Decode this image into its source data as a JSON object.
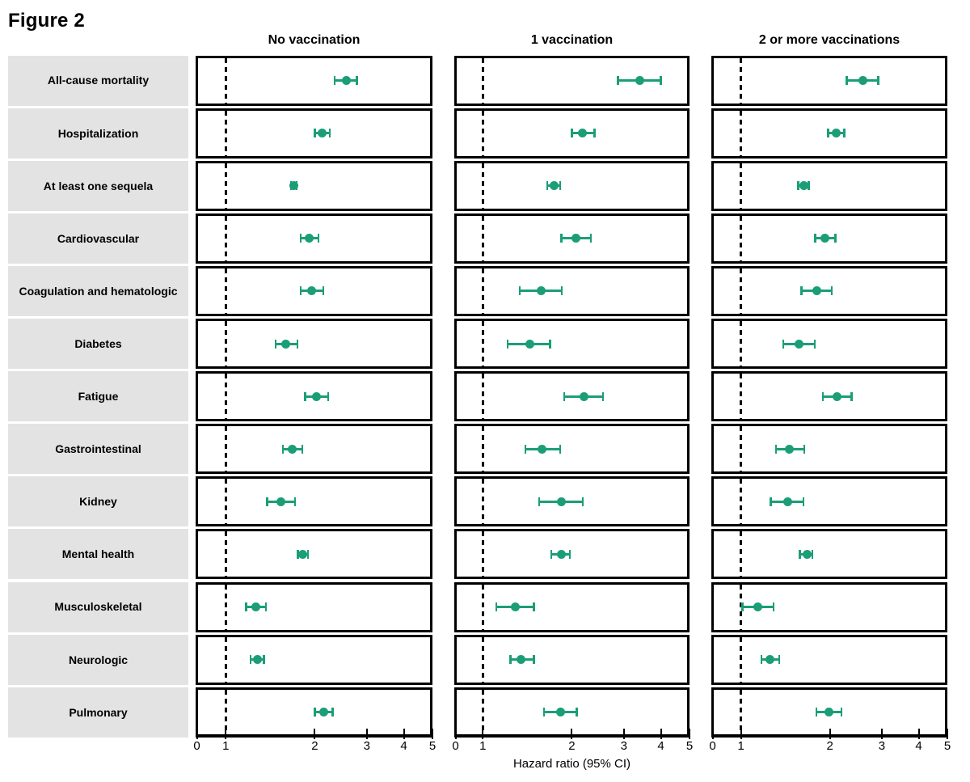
{
  "figure": {
    "title": "Figure 2",
    "xlabel": "Hazard ratio (95% CI)"
  },
  "colors": {
    "marker_green": "#1b9e77",
    "row_band_gray": "#e3e3e3",
    "line_black": "#000000"
  },
  "chart_data": {
    "type": "scatter",
    "variant": "forest-plot-with-95ci-error-bars",
    "title": "Figure 2",
    "xlabel": "Hazard ratio (95% CI)",
    "x_scale": "log (tick labeled 0 pinned at panel left edge)",
    "x_ticks": [
      0,
      1,
      2,
      3,
      4,
      5
    ],
    "xlim_log": [
      0.8,
      5
    ],
    "reference_line_at": 1,
    "grid": false,
    "legend": "none (three titled panel columns)",
    "columns": [
      "No vaccination",
      "1 vaccination",
      "2 or more vaccinations"
    ],
    "rows": [
      "All-cause mortality",
      "Hospitalization",
      "At least one sequela",
      "Cardiovascular",
      "Coagulation and hematologic",
      "Diabetes",
      "Fatigue",
      "Gastrointestinal",
      "Kidney",
      "Mental health",
      "Musculoskeletal",
      "Neurologic",
      "Pulmonary"
    ],
    "value_format": "[hazard_ratio, ci_low, ci_high]",
    "series": [
      {
        "name": "No vaccination",
        "values": [
          [
            2.55,
            2.33,
            2.78
          ],
          [
            2.12,
            2.0,
            2.25
          ],
          [
            1.7,
            1.66,
            1.74
          ],
          [
            1.92,
            1.79,
            2.06
          ],
          [
            1.95,
            1.79,
            2.14
          ],
          [
            1.6,
            1.47,
            1.75
          ],
          [
            2.02,
            1.85,
            2.22
          ],
          [
            1.68,
            1.56,
            1.82
          ],
          [
            1.54,
            1.38,
            1.72
          ],
          [
            1.82,
            1.75,
            1.9
          ],
          [
            1.26,
            1.17,
            1.37
          ],
          [
            1.28,
            1.21,
            1.35
          ],
          [
            2.15,
            2.0,
            2.3
          ]
        ]
      },
      {
        "name": "1 vaccination",
        "values": [
          [
            3.4,
            2.86,
            4.0
          ],
          [
            2.17,
            2.0,
            2.39
          ],
          [
            1.74,
            1.65,
            1.83
          ],
          [
            2.06,
            1.84,
            2.32
          ],
          [
            1.58,
            1.33,
            1.85
          ],
          [
            1.44,
            1.21,
            1.69
          ],
          [
            2.2,
            1.88,
            2.55
          ],
          [
            1.59,
            1.39,
            1.83
          ],
          [
            1.84,
            1.55,
            2.18
          ],
          [
            1.84,
            1.7,
            1.97
          ],
          [
            1.29,
            1.11,
            1.49
          ],
          [
            1.35,
            1.24,
            1.49
          ],
          [
            1.83,
            1.61,
            2.08
          ]
        ]
      },
      {
        "name": "2 or more vaccinations",
        "values": [
          [
            2.58,
            2.28,
            2.92
          ],
          [
            2.1,
            1.97,
            2.24
          ],
          [
            1.63,
            1.56,
            1.7
          ],
          [
            1.92,
            1.78,
            2.09
          ],
          [
            1.81,
            1.6,
            2.03
          ],
          [
            1.57,
            1.39,
            1.78
          ],
          [
            2.12,
            1.89,
            2.37
          ],
          [
            1.46,
            1.31,
            1.64
          ],
          [
            1.44,
            1.26,
            1.63
          ],
          [
            1.67,
            1.58,
            1.75
          ],
          [
            1.14,
            1.01,
            1.29
          ],
          [
            1.25,
            1.17,
            1.35
          ],
          [
            1.99,
            1.8,
            2.19
          ]
        ]
      }
    ]
  }
}
